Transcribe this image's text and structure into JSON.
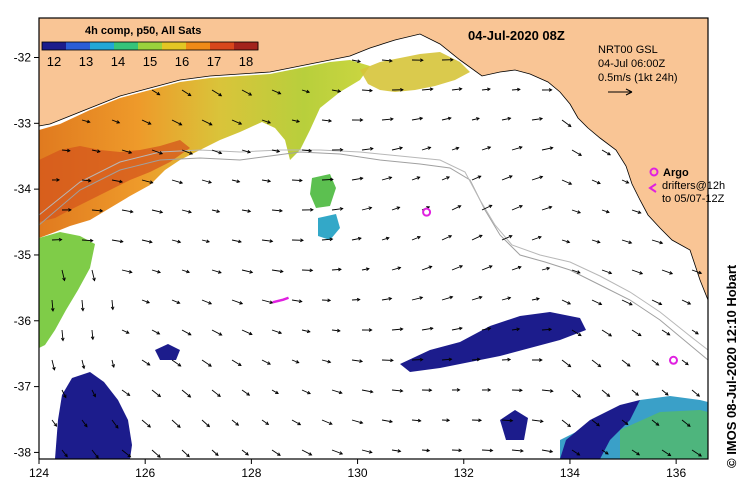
{
  "title": "04-Jul-2020 08Z",
  "colorbar": {
    "label": "4h comp, p50, All Sats",
    "ticks": [
      "12",
      "13",
      "14",
      "15",
      "16",
      "17",
      "18"
    ],
    "stops": [
      "#1c1c8c",
      "#2a5dd6",
      "#21a7d6",
      "#35c47a",
      "#9ad23c",
      "#e3c623",
      "#ef8a17",
      "#d8461c",
      "#a3231c"
    ]
  },
  "current_legend": {
    "line1": "NRT00 GSL",
    "line2": "04-Jul 06:00Z",
    "line3": "0.5m/s (1kt 24h)"
  },
  "argo_legend": {
    "title": "Argo",
    "line1": "drifters@12h",
    "line2": "to 05/07-12Z"
  },
  "credit": "© IMOS 08-Jul-2020 12:10 Hobart",
  "axes": {
    "lon_labels": [
      "124",
      "126",
      "128",
      "130",
      "132",
      "134",
      "136"
    ],
    "lat_labels": [
      "-32",
      "-33",
      "-34",
      "-35",
      "-36",
      "-37",
      "-38"
    ]
  },
  "map_data": {
    "lon_range": [
      124,
      136.6
    ],
    "lat_range": [
      -38.1,
      -31.4
    ],
    "argo_floats": [
      {
        "lon": 131.3,
        "lat": -34.35
      },
      {
        "lon": 135.95,
        "lat": -36.6
      }
    ],
    "argo_tracks": [
      [
        [
          128.4,
          -35.72
        ],
        [
          128.6,
          -35.68
        ],
        [
          128.7,
          -35.65
        ]
      ]
    ]
  },
  "colors": {
    "land": "#f9c595",
    "sea": "#ffffff",
    "argo": "#e020e0",
    "frame": "#000000",
    "shelf": "#a0a0a0"
  }
}
